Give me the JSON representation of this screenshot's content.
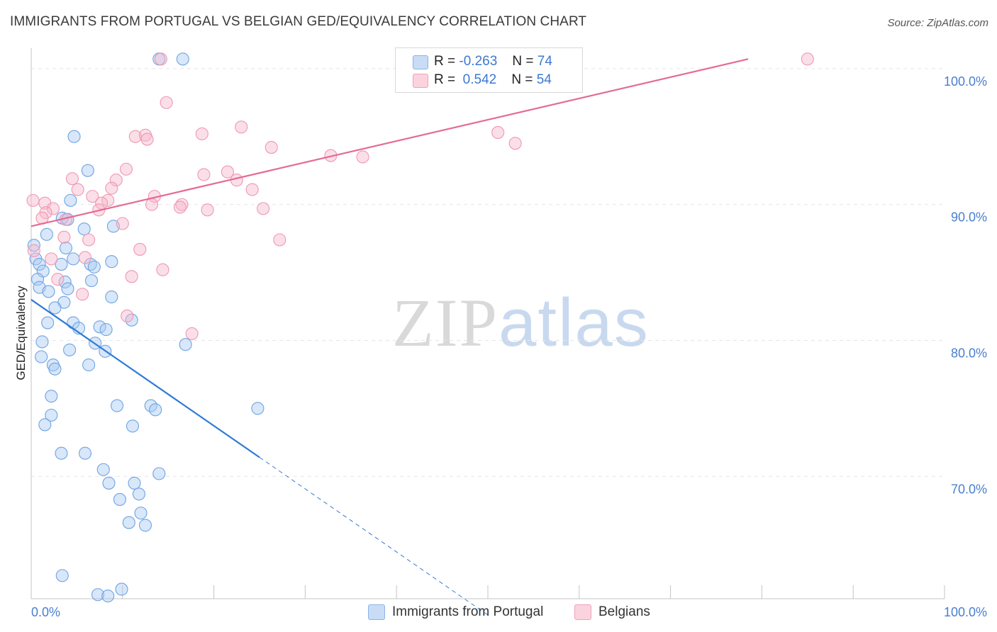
{
  "title": "IMMIGRANTS FROM PORTUGAL VS BELGIAN GED/EQUIVALENCY CORRELATION CHART",
  "source": "Source: ZipAtlas.com",
  "watermark": {
    "zip": "ZIP",
    "atlas": "atlas"
  },
  "legend_top": {
    "rows": [
      {
        "r_label": "R =",
        "r_value": "-0.263",
        "n_label": "N =",
        "n_value": "74",
        "color": "#a9c9f2"
      },
      {
        "r_label": "R =",
        "r_value": "0.542",
        "n_label": "N =",
        "n_value": "54",
        "color": "#f6b8cb"
      }
    ]
  },
  "legend_bottom": [
    {
      "label": "Immigrants from Portugal",
      "color": "#a9c9f2"
    },
    {
      "label": "Belgians",
      "color": "#f6b8cb"
    }
  ],
  "chart_data": {
    "type": "scatter",
    "title": "IMMIGRANTS FROM PORTUGAL VS BELGIAN GED/EQUIVALENCY CORRELATION CHART",
    "xlabel": "",
    "ylabel": "GED/Equivalency",
    "xlim": [
      0,
      100
    ],
    "ylim": [
      61,
      101.5
    ],
    "x_tick_labels": [
      "0.0%",
      "100.0%"
    ],
    "y_ticks": [
      70,
      80,
      90,
      100
    ],
    "y_tick_labels": [
      "70.0%",
      "80.0%",
      "90.0%",
      "100.0%"
    ],
    "grid": true,
    "series": [
      {
        "name": "Immigrants from Portugal",
        "color": "#6fa3e3",
        "fill": "#a9c9f2",
        "trend": {
          "x0": 0,
          "y0": 83,
          "x1": 25,
          "y1": 71.4,
          "dash_to_x": 50,
          "dash_to_y": 59.8,
          "color": "#2f7bd6"
        },
        "points": [
          [
            14,
            100.7
          ],
          [
            16.6,
            100.7
          ],
          [
            4.7,
            95
          ],
          [
            6.2,
            92.5
          ],
          [
            4.3,
            90.3
          ],
          [
            3.4,
            89
          ],
          [
            5.8,
            88.2
          ],
          [
            9,
            88.4
          ],
          [
            4,
            88.9
          ],
          [
            1.7,
            87.8
          ],
          [
            0.3,
            87
          ],
          [
            3.8,
            86.8
          ],
          [
            0.5,
            86
          ],
          [
            4.6,
            86
          ],
          [
            3.3,
            85.6
          ],
          [
            6.5,
            85.6
          ],
          [
            8.8,
            85.8
          ],
          [
            0.9,
            85.6
          ],
          [
            1.3,
            85.1
          ],
          [
            6.9,
            85.4
          ],
          [
            0.7,
            84.5
          ],
          [
            3.7,
            84.3
          ],
          [
            6.6,
            84.4
          ],
          [
            0.9,
            83.9
          ],
          [
            4,
            83.8
          ],
          [
            1.9,
            83.6
          ],
          [
            8.8,
            83.2
          ],
          [
            3.6,
            82.8
          ],
          [
            2.6,
            82.4
          ],
          [
            11,
            81.5
          ],
          [
            1.8,
            81.3
          ],
          [
            4.6,
            81.3
          ],
          [
            7.5,
            81
          ],
          [
            5.2,
            80.9
          ],
          [
            8.2,
            80.8
          ],
          [
            1.2,
            79.9
          ],
          [
            7,
            79.8
          ],
          [
            16.9,
            79.7
          ],
          [
            4.2,
            79.3
          ],
          [
            8.1,
            79.2
          ],
          [
            1.1,
            78.8
          ],
          [
            2.4,
            78.2
          ],
          [
            6.3,
            78.2
          ],
          [
            2.6,
            77.9
          ],
          [
            2.2,
            75.9
          ],
          [
            9.4,
            75.2
          ],
          [
            13.1,
            75.2
          ],
          [
            13.6,
            74.9
          ],
          [
            24.8,
            75
          ],
          [
            2.2,
            74.5
          ],
          [
            1.5,
            73.8
          ],
          [
            11.1,
            73.7
          ],
          [
            3.3,
            71.7
          ],
          [
            5.9,
            71.7
          ],
          [
            7.9,
            70.5
          ],
          [
            14,
            70.2
          ],
          [
            8.5,
            69.5
          ],
          [
            11.3,
            69.5
          ],
          [
            11.8,
            68.7
          ],
          [
            9.7,
            68.3
          ],
          [
            12,
            67.3
          ],
          [
            10.7,
            66.6
          ],
          [
            12.5,
            66.4
          ],
          [
            3.4,
            62.7
          ],
          [
            9.9,
            61.7
          ],
          [
            7.3,
            61.3
          ],
          [
            8.4,
            61.2
          ]
        ]
      },
      {
        "name": "Belgians",
        "color": "#ef97b1",
        "fill": "#f6b8cb",
        "trend": {
          "x0": 0,
          "y0": 88.4,
          "x1": 78.5,
          "y1": 100.7,
          "color": "#e46b94"
        },
        "points": [
          [
            14.2,
            100.7
          ],
          [
            85,
            100.7
          ],
          [
            14.8,
            97.5
          ],
          [
            23,
            95.7
          ],
          [
            18.7,
            95.2
          ],
          [
            11.4,
            95
          ],
          [
            12.5,
            95.1
          ],
          [
            12.7,
            94.8
          ],
          [
            53,
            94.5
          ],
          [
            26.3,
            94.2
          ],
          [
            32.8,
            93.6
          ],
          [
            36.3,
            93.5
          ],
          [
            51.1,
            95.3
          ],
          [
            10.4,
            92.6
          ],
          [
            18.9,
            92.2
          ],
          [
            21.5,
            92.4
          ],
          [
            22.5,
            91.8
          ],
          [
            4.5,
            91.9
          ],
          [
            9.3,
            91.8
          ],
          [
            8.8,
            91.2
          ],
          [
            24.2,
            91.1
          ],
          [
            5.1,
            91.1
          ],
          [
            6.7,
            90.6
          ],
          [
            13.5,
            90.6
          ],
          [
            8.4,
            90.3
          ],
          [
            7.7,
            90.1
          ],
          [
            0.2,
            90.3
          ],
          [
            1.5,
            90.1
          ],
          [
            16.5,
            90
          ],
          [
            13.2,
            90
          ],
          [
            16.3,
            89.8
          ],
          [
            7.4,
            89.6
          ],
          [
            2.4,
            89.7
          ],
          [
            19.3,
            89.6
          ],
          [
            25.4,
            89.7
          ],
          [
            1.6,
            89.4
          ],
          [
            1.2,
            89
          ],
          [
            3.8,
            88.9
          ],
          [
            10,
            88.6
          ],
          [
            3.6,
            87.6
          ],
          [
            6.3,
            87.4
          ],
          [
            27.2,
            87.4
          ],
          [
            11.9,
            86.7
          ],
          [
            5.9,
            86.1
          ],
          [
            0.3,
            86.6
          ],
          [
            2.2,
            86
          ],
          [
            14.4,
            85.2
          ],
          [
            11,
            84.7
          ],
          [
            2.9,
            84.5
          ],
          [
            5.6,
            83.4
          ],
          [
            10.5,
            81.8
          ],
          [
            17.6,
            80.5
          ]
        ]
      }
    ]
  }
}
